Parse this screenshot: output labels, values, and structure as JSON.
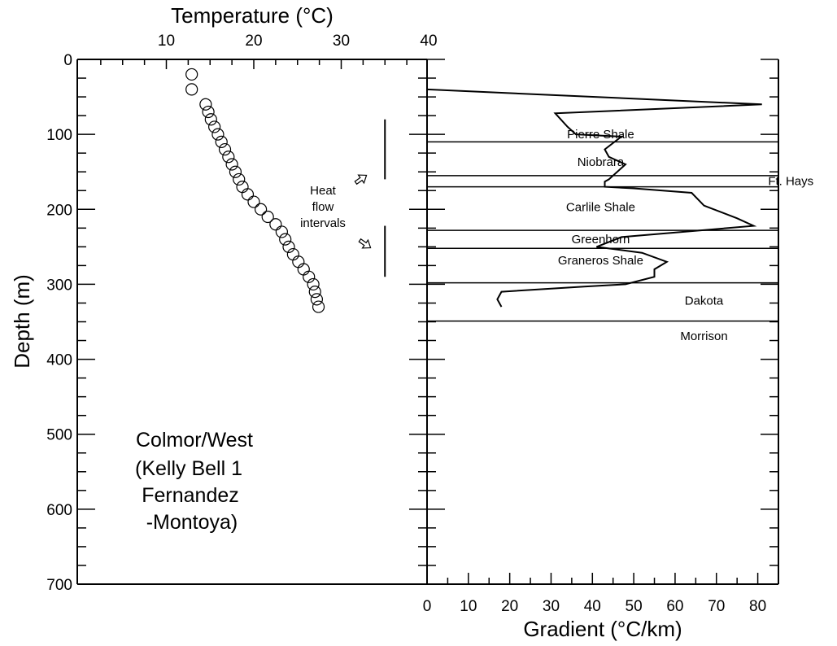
{
  "chart_data": [
    {
      "type": "scatter",
      "panel": "left",
      "title": "",
      "xlabel": "Temperature (°C)",
      "ylabel": "Depth (m)",
      "xlim": [
        0,
        40
      ],
      "ylim": [
        700,
        0
      ],
      "x_ticks": [
        10,
        20,
        30,
        40
      ],
      "y_ticks": [
        0,
        100,
        200,
        300,
        400,
        500,
        600,
        700
      ],
      "marker": "open-circle",
      "series": [
        {
          "points": [
            {
              "x": 12.9,
              "y": 20
            },
            {
              "x": 12.9,
              "y": 40
            },
            {
              "x": 14.5,
              "y": 60
            },
            {
              "x": 14.8,
              "y": 70
            },
            {
              "x": 15.1,
              "y": 80
            },
            {
              "x": 15.5,
              "y": 90
            },
            {
              "x": 15.9,
              "y": 100
            },
            {
              "x": 16.3,
              "y": 110
            },
            {
              "x": 16.7,
              "y": 120
            },
            {
              "x": 17.1,
              "y": 130
            },
            {
              "x": 17.5,
              "y": 140
            },
            {
              "x": 17.9,
              "y": 150
            },
            {
              "x": 18.3,
              "y": 160
            },
            {
              "x": 18.7,
              "y": 170
            },
            {
              "x": 19.3,
              "y": 180
            },
            {
              "x": 20.0,
              "y": 190
            },
            {
              "x": 20.8,
              "y": 200
            },
            {
              "x": 21.6,
              "y": 210
            },
            {
              "x": 22.5,
              "y": 220
            },
            {
              "x": 23.2,
              "y": 230
            },
            {
              "x": 23.6,
              "y": 240
            },
            {
              "x": 24.0,
              "y": 250
            },
            {
              "x": 24.5,
              "y": 260
            },
            {
              "x": 25.1,
              "y": 270
            },
            {
              "x": 25.7,
              "y": 280
            },
            {
              "x": 26.3,
              "y": 290
            },
            {
              "x": 26.8,
              "y": 300
            },
            {
              "x": 27.0,
              "y": 310
            },
            {
              "x": 27.2,
              "y": 320
            },
            {
              "x": 27.4,
              "y": 330
            }
          ]
        }
      ],
      "annotations": {
        "heat_flow_label": [
          "Heat",
          "flow",
          "intervals"
        ],
        "heat_flow_intervals_m": [
          [
            80,
            160
          ],
          [
            222,
            290
          ]
        ],
        "heat_flow_x": 35,
        "well_label": [
          "Colmor/West",
          "(Kelly Bell 1",
          " Fernandez",
          " -Montoya)"
        ]
      }
    },
    {
      "type": "line",
      "panel": "right",
      "title": "",
      "xlabel": "Gradient (°C/km)",
      "ylabel": "",
      "xlim": [
        0,
        85
      ],
      "ylim": [
        700,
        0
      ],
      "x_ticks": [
        0,
        10,
        20,
        30,
        40,
        50,
        60,
        70,
        80
      ],
      "series": [
        {
          "points": [
            {
              "x": 0,
              "y": 40
            },
            {
              "x": 81,
              "y": 60
            },
            {
              "x": 31,
              "y": 72
            },
            {
              "x": 34,
              "y": 90
            },
            {
              "x": 36,
              "y": 100
            },
            {
              "x": 47,
              "y": 103
            },
            {
              "x": 43,
              "y": 120
            },
            {
              "x": 44,
              "y": 130
            },
            {
              "x": 48,
              "y": 140
            },
            {
              "x": 47,
              "y": 145
            },
            {
              "x": 44,
              "y": 160
            },
            {
              "x": 43,
              "y": 163
            },
            {
              "x": 43,
              "y": 170
            },
            {
              "x": 50,
              "y": 172
            },
            {
              "x": 64,
              "y": 178
            },
            {
              "x": 67,
              "y": 195
            },
            {
              "x": 75,
              "y": 212
            },
            {
              "x": 79,
              "y": 222
            },
            {
              "x": 47,
              "y": 237
            },
            {
              "x": 41,
              "y": 250
            },
            {
              "x": 52,
              "y": 258
            },
            {
              "x": 58,
              "y": 270
            },
            {
              "x": 55,
              "y": 280
            },
            {
              "x": 55,
              "y": 290
            },
            {
              "x": 48,
              "y": 300
            },
            {
              "x": 38,
              "y": 303
            },
            {
              "x": 18,
              "y": 310
            },
            {
              "x": 17,
              "y": 320
            },
            {
              "x": 18,
              "y": 330
            }
          ]
        }
      ],
      "formation_boundaries_m": [
        110,
        155,
        170,
        228,
        252,
        298,
        349
      ],
      "formations": [
        {
          "name": "Pierre Shale",
          "x": 42,
          "y": 100
        },
        {
          "name": "Niobrara",
          "x": 42,
          "y": 137
        },
        {
          "name": "Ft. Hays",
          "x": 88,
          "y": 162
        },
        {
          "name": "Carlile Shale",
          "x": 42,
          "y": 197
        },
        {
          "name": "Greenhorn",
          "x": 42,
          "y": 240
        },
        {
          "name": "Graneros Shale",
          "x": 42,
          "y": 268
        },
        {
          "name": "Dakota",
          "x": 67,
          "y": 322
        },
        {
          "name": "Morrison",
          "x": 67,
          "y": 369
        }
      ]
    }
  ]
}
